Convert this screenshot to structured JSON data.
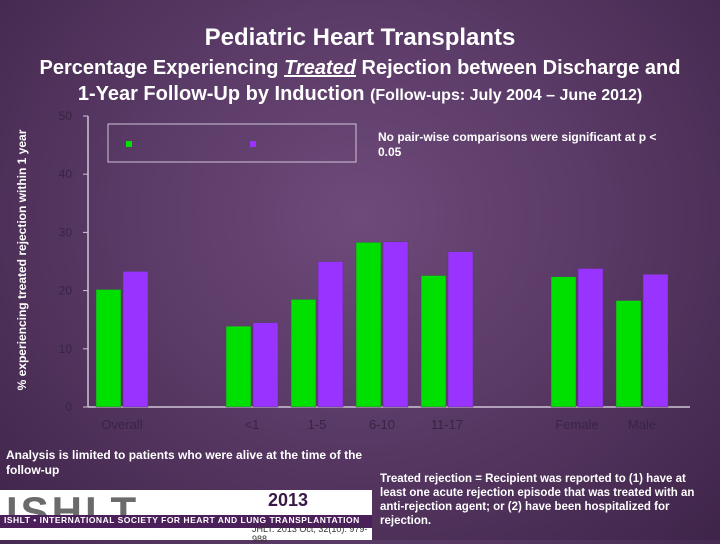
{
  "page": {
    "title": "Pediatric Heart Transplants",
    "subtitle_line1": "Percentage Experiencing Treated Rejection between Discharge and",
    "subtitle_line1_pre": "Percentage Experiencing ",
    "subtitle_line1_em": "Treated",
    "subtitle_line1_post": " Rejection between Discharge and",
    "subtitle_line2_main": "1-Year Follow-Up by Induction ",
    "subtitle_line2_small": "(Follow-ups: July 2004 – June 2012)",
    "significance_note": "No pair-wise comparisons were significant at p < 0.05",
    "analysis_note": "Analysis is limited to patients who were alive at the time of the follow-up",
    "definition_note": "Treated rejection = Recipient was reported to (1) have at least one acute rejection episode that was treated with an anti-rejection agent; or (2) have been hospitalized for rejection.",
    "logo": {
      "name": "ISHLT",
      "org": "ISHLT • INTERNATIONAL SOCIETY FOR HEART AND LUNG TRANSPLANTATION",
      "year": "2013",
      "citation": "JHLT. 2013 Oct; 32(10): 979-988"
    }
  },
  "chart_data": {
    "type": "bar",
    "title": "",
    "ylabel": "% experiencing treated rejection within 1 year",
    "xlabel": "",
    "ylim": [
      0,
      50
    ],
    "yticks": [
      0,
      10,
      20,
      30,
      40,
      50
    ],
    "categories": [
      "Overall",
      "<1",
      "1-5",
      "6-10",
      "11-17",
      "Female",
      "Male"
    ],
    "category_groups": [
      [
        0
      ],
      [
        1,
        2,
        3,
        4
      ],
      [
        5,
        6
      ]
    ],
    "series": [
      {
        "name": "",
        "color": "#00e000",
        "values": [
          20.2,
          13.9,
          18.5,
          28.3,
          22.6,
          22.4,
          18.3
        ]
      },
      {
        "name": "",
        "color": "#9933ff",
        "values": [
          23.3,
          14.5,
          25.0,
          28.4,
          26.7,
          23.8,
          22.8
        ]
      }
    ],
    "legend_position": "top",
    "grid": false
  }
}
